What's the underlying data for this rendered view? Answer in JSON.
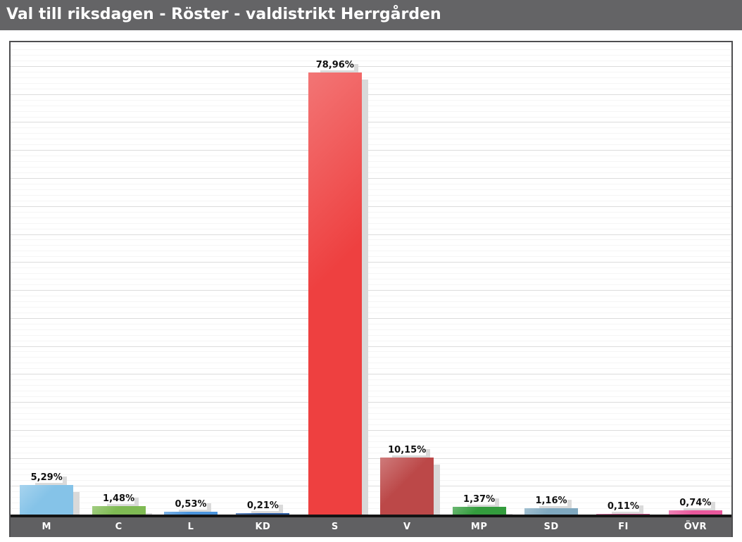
{
  "header": {
    "title": "Val till riksdagen - Röster - valdistrikt Herrgården",
    "bg_color": "#646466",
    "text_color": "#ffffff"
  },
  "chart_data": {
    "type": "bar",
    "title": "Val till riksdagen - Röster - valdistrikt Herrgården",
    "categories": [
      "M",
      "C",
      "L",
      "KD",
      "S",
      "V",
      "MP",
      "SD",
      "FI",
      "ÖVR"
    ],
    "values": [
      5.29,
      1.48,
      0.53,
      0.21,
      78.96,
      10.15,
      1.37,
      1.16,
      0.11,
      0.74
    ],
    "value_labels": [
      "5,29%",
      "1,48%",
      "0,53%",
      "0,21%",
      "78,96%",
      "10,15%",
      "1,37%",
      "1,16%",
      "0,11%",
      "0,74%"
    ],
    "bar_colors": [
      "#85c3e8",
      "#7fba53",
      "#4a94dc",
      "#2f5fa5",
      "#ee4040",
      "#bc4848",
      "#339c3d",
      "#7fa8bf",
      "#d4548f",
      "#e8579b"
    ],
    "unit": "percent",
    "ylim": [
      0,
      84.4
    ],
    "grid": {
      "minor_step": 1,
      "major_step": 5,
      "minor_color": "#f5f5f5",
      "major_color": "#dcdcdc"
    },
    "legend": "none",
    "baseline_color": "#141414",
    "axis_band_color": "#606062",
    "axis_text_color": "#ffffff",
    "shadow_color": "#d9d9d9"
  }
}
